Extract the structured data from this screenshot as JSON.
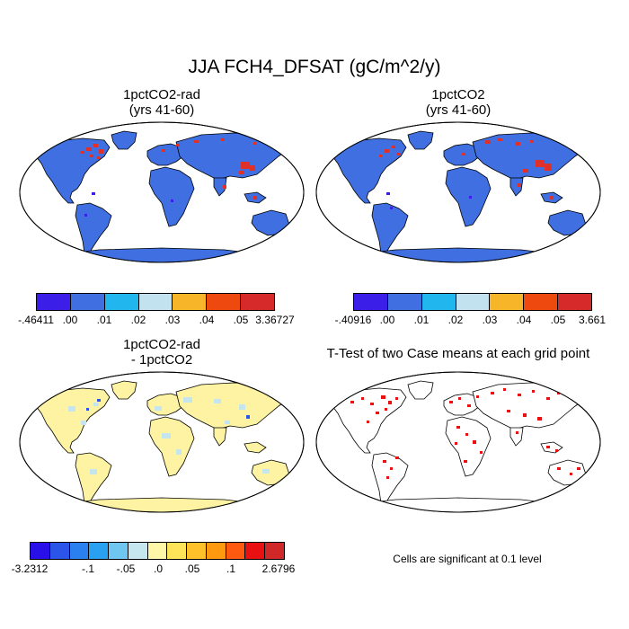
{
  "title": "JJA FCH4_DFSAT (gC/m^2/y)",
  "panels": [
    {
      "title1": "1pctCO2-rad",
      "title2": "(yrs 41-60)"
    },
    {
      "title1": "1pctCO2",
      "title2": "(yrs 41-60)"
    },
    {
      "title1": "1pctCO2-rad",
      "title2": "- 1pctCO2"
    },
    {
      "title1": "T-Test of two Case means at each grid point",
      "title2": ""
    }
  ],
  "colorbars": {
    "top_left": {
      "colors": [
        "#3b1fe8",
        "#3f6fe0",
        "#22b6ee",
        "#c2e2f0",
        "#f7b52a",
        "#ee4a10",
        "#d62a2a"
      ],
      "labels": [
        "-.46411",
        ".00",
        ".01",
        ".02",
        ".03",
        ".04",
        ".05",
        "3.36727"
      ]
    },
    "top_right": {
      "colors": [
        "#3b1fe8",
        "#3f6fe0",
        "#22b6ee",
        "#c2e2f0",
        "#f7b52a",
        "#ee4a10",
        "#d62a2a"
      ],
      "labels": [
        "-.40916",
        ".00",
        ".01",
        ".02",
        ".03",
        ".04",
        ".05",
        "3.661"
      ]
    },
    "bottom_left": {
      "colors": [
        "#2a10e8",
        "#2a55e8",
        "#2a80ee",
        "#2aa0f0",
        "#6fc6f0",
        "#c5e6ee",
        "#fff7a8",
        "#ffe45a",
        "#ffc12a",
        "#ff9a10",
        "#ff5a10",
        "#e81010",
        "#d02828"
      ],
      "labels": [
        "-3.2312",
        "-.1",
        "-.05",
        ".0",
        ".05",
        ".1",
        "2.6796"
      ]
    }
  },
  "significance_note": "Cells are significant at 0.1 level",
  "fills": {
    "panel_a": "#3f6fe0",
    "panel_b": "#3f6fe0",
    "panel_c": "#fdf3a2",
    "panel_d": "#ffffff",
    "hotspot": "#e0302a",
    "significant": "#e81010",
    "coast": "#000000"
  }
}
